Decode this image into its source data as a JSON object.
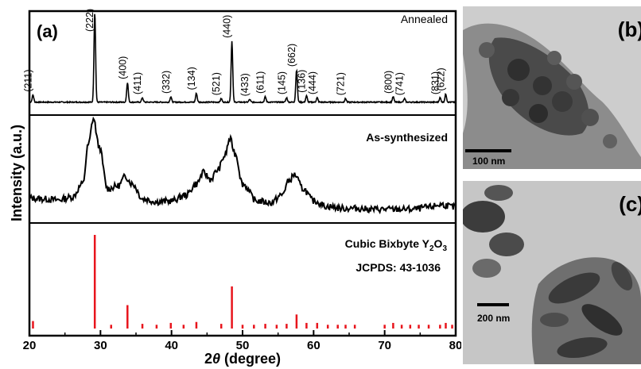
{
  "panel_a": {
    "label": "(a)",
    "ylabel": "Intensity (a.u.)",
    "xlabel_prefix": "2",
    "xlabel_theta": "θ",
    "xlabel_suffix": " (degree)",
    "annealed_label": "Annealed",
    "as_synth_label": "As-synthesized",
    "ref_label_main": "Cubic Bixbyte Y",
    "ref_sub1": "2",
    "ref_mid": "O",
    "ref_sub2": "3",
    "jcpds_label": "JCPDS: 43-1036",
    "stick_color": "#e8141c"
  },
  "chart_data": {
    "type": "line",
    "xlabel": "2θ (degree)",
    "ylabel": "Intensity (a.u.)",
    "xlim": [
      20,
      80
    ],
    "xticks": [
      20,
      30,
      40,
      50,
      60,
      70,
      80
    ],
    "panels": [
      "Annealed",
      "As-synthesized",
      "Cubic Bixbyte Y2O3 JCPDS: 43-1036"
    ],
    "annealed_peaks": [
      {
        "hkl": "(211)",
        "x": 20.5,
        "h": 0.08
      },
      {
        "hkl": "(222)",
        "x": 29.2,
        "h": 1.0
      },
      {
        "hkl": "(400)",
        "x": 33.8,
        "h": 0.22
      },
      {
        "hkl": "(411)",
        "x": 35.9,
        "h": 0.05
      },
      {
        "hkl": "(332)",
        "x": 39.9,
        "h": 0.06
      },
      {
        "hkl": "(134)",
        "x": 43.5,
        "h": 0.1
      },
      {
        "hkl": "(521)",
        "x": 47.0,
        "h": 0.04
      },
      {
        "hkl": "(440)",
        "x": 48.5,
        "h": 0.68
      },
      {
        "hkl": "(433)",
        "x": 51.0,
        "h": 0.03
      },
      {
        "hkl": "(611)",
        "x": 53.2,
        "h": 0.06
      },
      {
        "hkl": "(145)",
        "x": 56.2,
        "h": 0.05
      },
      {
        "hkl": "(662)",
        "x": 57.6,
        "h": 0.36
      },
      {
        "hkl": "(136)",
        "x": 59.0,
        "h": 0.07
      },
      {
        "hkl": "(444)",
        "x": 60.5,
        "h": 0.05
      },
      {
        "hkl": "(721)",
        "x": 64.5,
        "h": 0.04
      },
      {
        "hkl": "(800)",
        "x": 71.2,
        "h": 0.06
      },
      {
        "hkl": "(741)",
        "x": 72.8,
        "h": 0.04
      },
      {
        "hkl": "(831)",
        "x": 77.8,
        "h": 0.05
      },
      {
        "hkl": "(622)",
        "x": 78.6,
        "h": 0.09
      }
    ],
    "as_synthesized": {
      "x": [
        20,
        22,
        24,
        26,
        27.5,
        28.3,
        29.0,
        29.8,
        31,
        32.5,
        33.5,
        34.5,
        36,
        38,
        40,
        42,
        43.5,
        44.5,
        45.5,
        46.5,
        47.5,
        48.2,
        49.0,
        50,
        52,
        54,
        55.5,
        56.5,
        57.3,
        58.5,
        60,
        62,
        64,
        66,
        68,
        70,
        72,
        74,
        76,
        78,
        80
      ],
      "y": [
        0.15,
        0.14,
        0.13,
        0.16,
        0.3,
        0.72,
        1.0,
        0.7,
        0.25,
        0.28,
        0.38,
        0.3,
        0.14,
        0.11,
        0.12,
        0.18,
        0.3,
        0.42,
        0.35,
        0.45,
        0.6,
        0.78,
        0.62,
        0.3,
        0.12,
        0.1,
        0.18,
        0.33,
        0.4,
        0.25,
        0.12,
        0.06,
        0.04,
        0.04,
        0.03,
        0.03,
        0.03,
        0.03,
        0.05,
        0.08,
        0.05
      ]
    },
    "reference_sticks": [
      {
        "x": 20.5,
        "h": 0.08
      },
      {
        "x": 29.2,
        "h": 1.0
      },
      {
        "x": 31.5,
        "h": 0.04
      },
      {
        "x": 33.8,
        "h": 0.25
      },
      {
        "x": 35.9,
        "h": 0.05
      },
      {
        "x": 37.9,
        "h": 0.04
      },
      {
        "x": 39.9,
        "h": 0.06
      },
      {
        "x": 41.7,
        "h": 0.04
      },
      {
        "x": 43.5,
        "h": 0.07
      },
      {
        "x": 47.0,
        "h": 0.05
      },
      {
        "x": 48.5,
        "h": 0.45
      },
      {
        "x": 50.0,
        "h": 0.04
      },
      {
        "x": 51.6,
        "h": 0.04
      },
      {
        "x": 53.2,
        "h": 0.05
      },
      {
        "x": 54.8,
        "h": 0.04
      },
      {
        "x": 56.2,
        "h": 0.05
      },
      {
        "x": 57.6,
        "h": 0.15
      },
      {
        "x": 59.0,
        "h": 0.06
      },
      {
        "x": 60.5,
        "h": 0.06
      },
      {
        "x": 62.0,
        "h": 0.04
      },
      {
        "x": 63.4,
        "h": 0.04
      },
      {
        "x": 64.5,
        "h": 0.04
      },
      {
        "x": 65.8,
        "h": 0.04
      },
      {
        "x": 70.0,
        "h": 0.04
      },
      {
        "x": 71.2,
        "h": 0.06
      },
      {
        "x": 72.4,
        "h": 0.04
      },
      {
        "x": 73.6,
        "h": 0.04
      },
      {
        "x": 74.8,
        "h": 0.04
      },
      {
        "x": 76.2,
        "h": 0.04
      },
      {
        "x": 77.8,
        "h": 0.04
      },
      {
        "x": 78.6,
        "h": 0.06
      },
      {
        "x": 79.5,
        "h": 0.04
      }
    ]
  },
  "panel_b": {
    "label": "(b)",
    "scale_text": "100 nm"
  },
  "panel_c": {
    "label": "(c)",
    "scale_text": "200 nm"
  }
}
